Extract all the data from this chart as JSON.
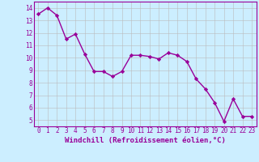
{
  "x": [
    0,
    1,
    2,
    3,
    4,
    5,
    6,
    7,
    8,
    9,
    10,
    11,
    12,
    13,
    14,
    15,
    16,
    17,
    18,
    19,
    20,
    21,
    22,
    23
  ],
  "y": [
    13.5,
    14.0,
    13.4,
    11.5,
    11.9,
    10.3,
    8.9,
    8.9,
    8.5,
    8.9,
    10.2,
    10.2,
    10.1,
    9.9,
    10.4,
    10.2,
    9.7,
    8.3,
    7.5,
    6.4,
    4.9,
    6.7,
    5.3,
    5.3
  ],
  "line_color": "#990099",
  "marker": "D",
  "markersize": 2.2,
  "linewidth": 1.0,
  "background_color": "#cceeff",
  "grid_color": "#bbbbbb",
  "xlabel": "Windchill (Refroidissement éolien,°C)",
  "xlabel_color": "#990099",
  "ylabel_ticks": [
    5,
    6,
    7,
    8,
    9,
    10,
    11,
    12,
    13,
    14
  ],
  "xlim": [
    -0.5,
    23.5
  ],
  "ylim": [
    4.5,
    14.5
  ],
  "tick_color": "#990099",
  "label_fontsize": 5.5,
  "xlabel_fontsize": 6.5
}
